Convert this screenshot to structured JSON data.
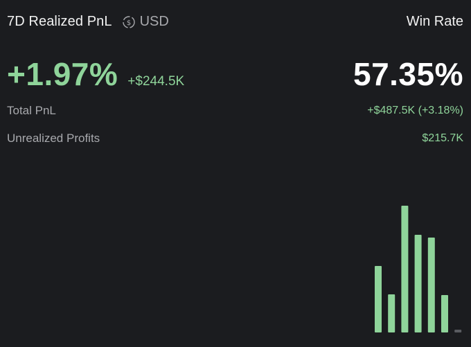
{
  "header": {
    "title": "7D Realized PnL",
    "currency_icon": "dollar-swap-icon",
    "currency_label": "USD",
    "win_rate_label": "Win Rate"
  },
  "summary": {
    "realized_pct": "+1.97%",
    "realized_abs": "+$244.5K",
    "win_rate": "57.35%"
  },
  "stats": [
    {
      "label": "Total PnL",
      "value": "+$487.5K (+3.18%)"
    },
    {
      "label": "Unrealized Profits",
      "value": "$215.7K"
    }
  ],
  "colors": {
    "background": "#1b1c1f",
    "positive": "#8fd49a",
    "muted_text": "#a8a9ad",
    "baseline_bar": "#5a5c61"
  },
  "chart_data": {
    "type": "bar",
    "values": [
      96,
      55,
      183,
      141,
      137,
      54,
      4
    ],
    "ylim": [
      0,
      200
    ],
    "grid": false
  }
}
